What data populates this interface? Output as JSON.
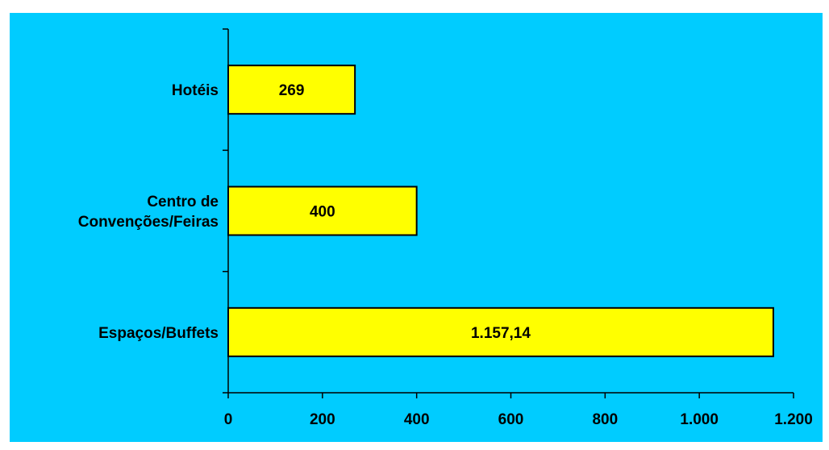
{
  "chart_data": {
    "type": "bar",
    "orientation": "horizontal",
    "categories": [
      [
        "Hotéis"
      ],
      [
        "Centro de",
        "Convenções/Feiras"
      ],
      [
        "Espaços/Buffets"
      ]
    ],
    "values": [
      269,
      400,
      1157.14
    ],
    "value_labels": [
      "269",
      "400",
      "1.157,14"
    ],
    "xlim": [
      0,
      1200
    ],
    "xticks": [
      0,
      200,
      400,
      600,
      800,
      1000,
      1200
    ],
    "xtick_labels": [
      "0",
      "200",
      "400",
      "600",
      "800",
      "1.000",
      "1.200"
    ],
    "title": "",
    "xlabel": "",
    "ylabel": "",
    "grid": false,
    "legend": "none",
    "colors": {
      "background": "#00CCFF",
      "bar_fill": "#FFFF00",
      "bar_stroke": "#000000",
      "axis": "#000000",
      "text": "#000000"
    }
  }
}
